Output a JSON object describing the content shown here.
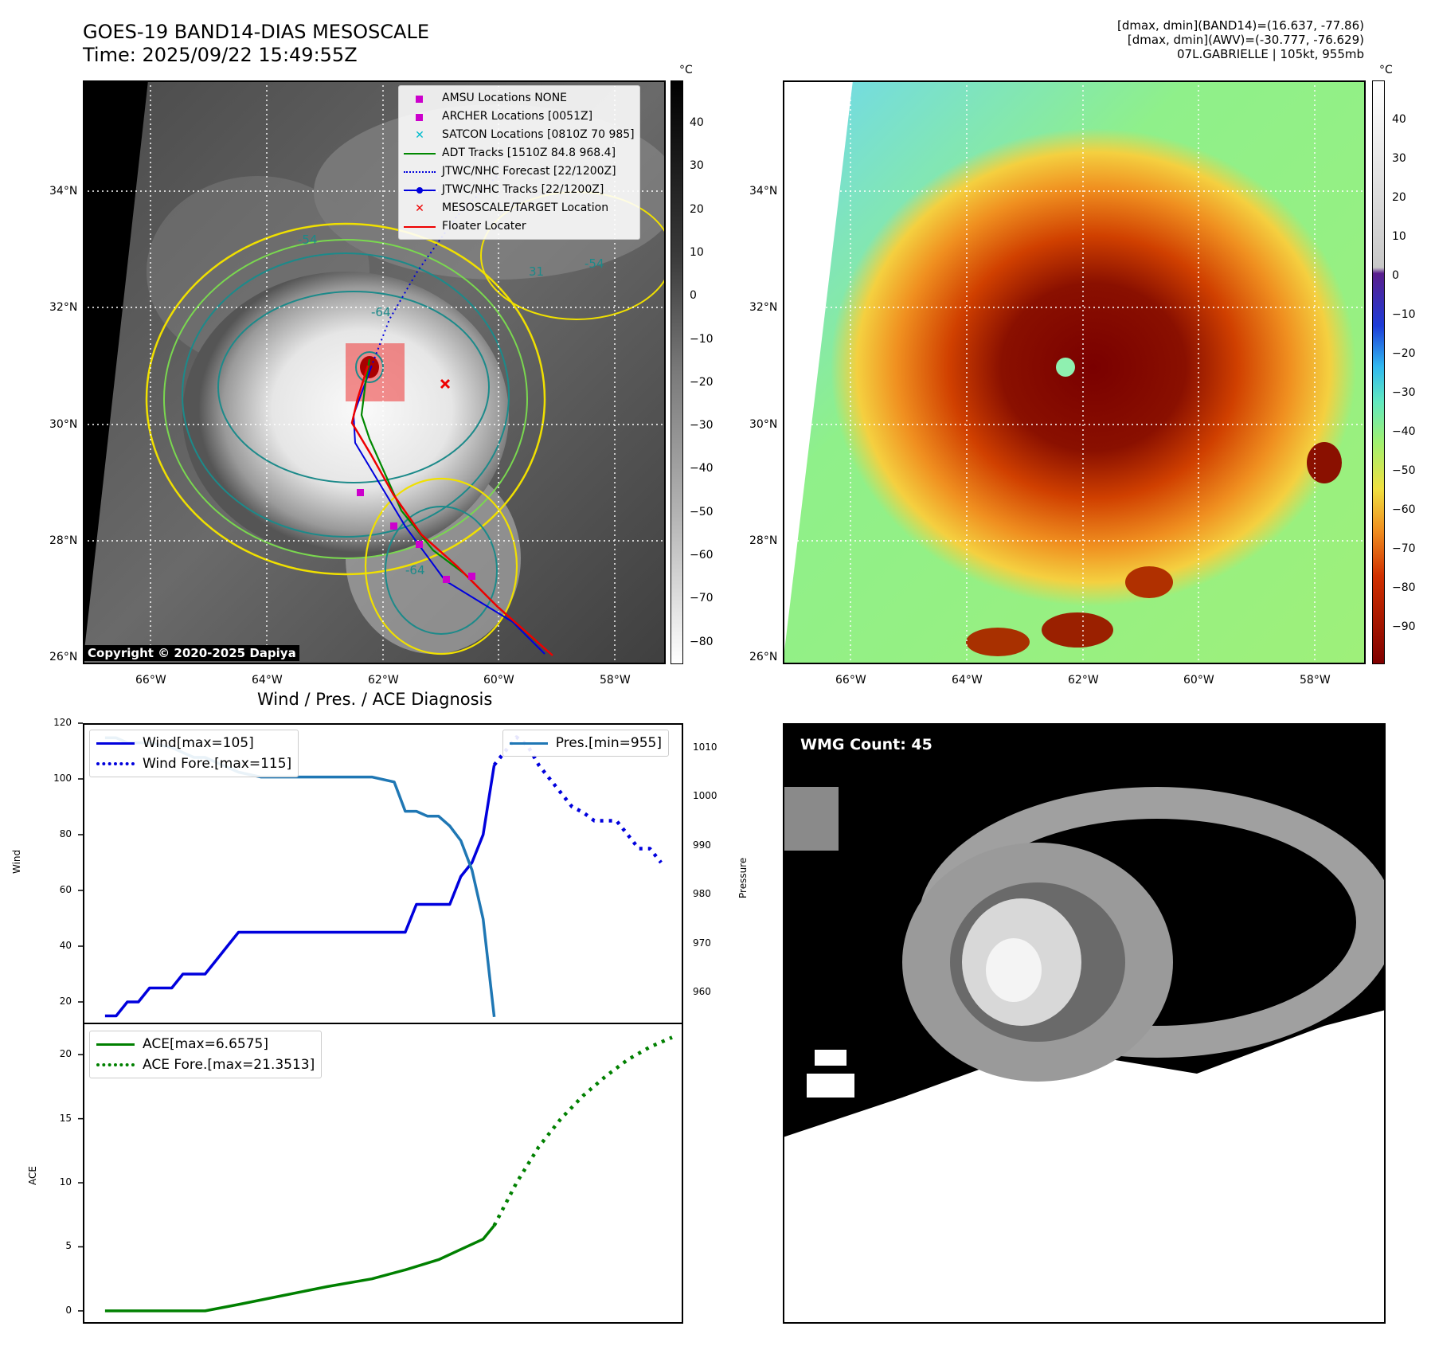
{
  "header": {
    "title_line1": "GOES-19 BAND14-DIAS MESOSCALE",
    "title_line2": "Time: 2025/09/22 15:49:55Z",
    "info_line1": "[dmax, dmin](BAND14)=(16.637, -77.86)",
    "info_line2": "[dmax, dmin](AWV)=(-30.777, -76.629)",
    "info_line3": "07L.GABRIELLE | 105kt, 955mb"
  },
  "map": {
    "lat_labels": [
      "34°N",
      "32°N",
      "30°N",
      "28°N",
      "26°N"
    ],
    "lon_labels": [
      "66°W",
      "64°W",
      "62°W",
      "60°W",
      "58°W"
    ],
    "colorbar_unit": "°C",
    "colorbar_left_ticks": [
      "40",
      "30",
      "20",
      "10",
      "0",
      "−10",
      "−20",
      "−30",
      "−40",
      "−50",
      "−60",
      "−70",
      "−80"
    ],
    "colorbar_right_ticks": [
      "40",
      "30",
      "20",
      "10",
      "0",
      "−10",
      "−20",
      "−30",
      "−40",
      "−50",
      "−60",
      "−70",
      "−80",
      "−90"
    ],
    "copyright": "Copyright © 2020-2025 Dapiya",
    "contour_labels": [
      "-64",
      "-54",
      "-64",
      "-54",
      "31"
    ],
    "legend": [
      {
        "label": "AMSU Locations NONE",
        "color": "#cc00cc",
        "kind": "square"
      },
      {
        "label": "ARCHER Locations [0051Z]",
        "color": "#cc00cc",
        "kind": "square"
      },
      {
        "label": "SATCON Locations [0810Z 70 985]",
        "color": "#00bbcc",
        "kind": "x"
      },
      {
        "label": "ADT Tracks [1510Z 84.8 968.4]",
        "color": "#008800",
        "kind": "line"
      },
      {
        "label": "JTWC/NHC Forecast [22/1200Z]",
        "color": "#0000dd",
        "kind": "dotted"
      },
      {
        "label": "JTWC/NHC Tracks [22/1200Z]",
        "color": "#0000dd",
        "kind": "linedot"
      },
      {
        "label": "MESOSCALE/TARGET Location",
        "color": "#ee0000",
        "kind": "x"
      },
      {
        "label": "Floater Locater",
        "color": "#ee0000",
        "kind": "line"
      }
    ]
  },
  "wmg": {
    "badge": "WMG Count: 45"
  },
  "chart_data": [
    {
      "type": "line",
      "title": "Wind / Pres. / ACE Diagnosis",
      "ylabel": "Wind",
      "y2label": "Pressure",
      "ylim": [
        12,
        120
      ],
      "y2lim": [
        953.5,
        1015
      ],
      "yticks": [
        "20",
        "40",
        "60",
        "80",
        "100",
        "120"
      ],
      "y2ticks": [
        "960",
        "970",
        "980",
        "990",
        "1000",
        "1010"
      ],
      "series": [
        {
          "name": "Wind[max=105]",
          "style": "solid",
          "color": "#0000dd",
          "x": [
            0,
            1,
            2,
            3,
            4,
            6,
            7,
            8,
            9,
            10,
            11,
            12,
            13,
            14,
            15,
            16,
            17,
            18,
            19,
            20,
            21,
            22,
            23,
            24,
            25,
            26,
            27,
            28,
            29,
            30,
            31,
            32,
            33,
            34,
            35,
            36,
            37,
            38
          ],
          "values": [
            15,
            15,
            20,
            20,
            25,
            25,
            30,
            30,
            30,
            35,
            40,
            45,
            45,
            45,
            45,
            45,
            45,
            45,
            45,
            45,
            45,
            45,
            45,
            45,
            45,
            45,
            45,
            55,
            55,
            55,
            55,
            65,
            70,
            80,
            105,
            null,
            null,
            null
          ]
        },
        {
          "name": "Wind Fore.[max=115]",
          "style": "dotted",
          "color": "#0000dd",
          "x": [
            35,
            36,
            37,
            38,
            39,
            40,
            41,
            42,
            43,
            44,
            45,
            46,
            47,
            48,
            49,
            50
          ],
          "values": [
            105,
            110,
            115,
            112,
            105,
            100,
            95,
            90,
            88,
            85,
            85,
            85,
            80,
            75,
            75,
            70
          ]
        },
        {
          "name": "Pres.[min=955]",
          "style": "solid",
          "color": "#1f77b4",
          "axis": "right",
          "x": [
            0,
            1,
            2,
            4,
            6,
            8,
            9,
            10,
            12,
            14,
            16,
            18,
            20,
            22,
            24,
            26,
            27,
            28,
            29,
            30,
            31,
            32,
            33,
            34,
            35
          ],
          "values": [
            1012,
            1012,
            1011,
            1011,
            1010,
            1008,
            1008,
            1007,
            1005,
            1004,
            1004,
            1004,
            1004,
            1004,
            1004,
            1003,
            997,
            997,
            996,
            996,
            994,
            991,
            985,
            975,
            955
          ]
        }
      ],
      "xlim": [
        -2,
        52
      ]
    },
    {
      "type": "line",
      "ylabel": "ACE",
      "ylim": [
        -1,
        22.5
      ],
      "yticks": [
        "0",
        "5",
        "10",
        "15",
        "20"
      ],
      "series": [
        {
          "name": "ACE[max=6.6575]",
          "style": "solid",
          "color": "#008000",
          "x": [
            0,
            9,
            12,
            16,
            20,
            24,
            27,
            30,
            32,
            34,
            35
          ],
          "values": [
            0,
            0,
            0.5,
            1.2,
            1.9,
            2.5,
            3.2,
            4.0,
            4.8,
            5.6,
            6.6575
          ]
        },
        {
          "name": "ACE Fore.[max=21.3513]",
          "style": "dotted",
          "color": "#008000",
          "x": [
            35,
            37,
            39,
            41,
            43,
            45,
            47,
            49,
            51
          ],
          "values": [
            6.6575,
            10,
            12.8,
            15,
            16.8,
            18.3,
            19.6,
            20.6,
            21.3513
          ]
        }
      ],
      "xlim": [
        -2,
        52
      ]
    }
  ]
}
